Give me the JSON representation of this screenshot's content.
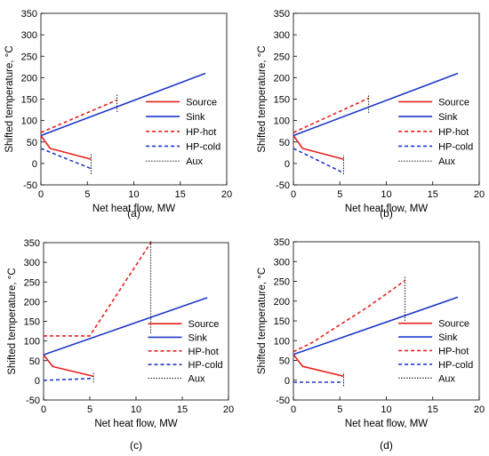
{
  "chart_data": [
    {
      "type": "line",
      "caption": "(a)",
      "xlabel": "Net heat flow, MW",
      "ylabel": "Shifted  temperature, °C",
      "xlim": [
        0,
        20
      ],
      "ylim": [
        -50,
        350
      ],
      "xticks": [
        0,
        5,
        10,
        15,
        20
      ],
      "yticks": [
        -50,
        0,
        50,
        100,
        150,
        200,
        250,
        300,
        350
      ],
      "grid": false,
      "legend_position": "right",
      "series": [
        {
          "name": "Source",
          "style": "solid",
          "color": "#e8201e",
          "x": [
            0,
            1,
            5.4
          ],
          "y": [
            65,
            35,
            10
          ]
        },
        {
          "name": "Sink",
          "style": "solid",
          "color": "#1f39c8",
          "x": [
            0,
            17.7
          ],
          "y": [
            65,
            210
          ]
        },
        {
          "name": "HP-hot",
          "style": "dashed",
          "color": "#e8201e",
          "x": [
            0,
            8.2
          ],
          "y": [
            72,
            148
          ]
        },
        {
          "name": "HP-cold",
          "style": "dashed",
          "color": "#1f39c8",
          "x": [
            0,
            5.4
          ],
          "y": [
            35,
            -12
          ]
        },
        {
          "name": "Aux",
          "style": "dotted",
          "color": "#000000",
          "lines": [
            {
              "x": 8.2,
              "y": [
                120,
                162
              ]
            },
            {
              "x": 5.4,
              "y": [
                -25,
                22
              ]
            }
          ]
        }
      ]
    },
    {
      "type": "line",
      "caption": "(b)",
      "xlabel": "Net heat flow, MW",
      "ylabel": "Shifted  temperature, °C",
      "xlim": [
        0,
        20
      ],
      "ylim": [
        -50,
        350
      ],
      "xticks": [
        0,
        5,
        10,
        15,
        20
      ],
      "yticks": [
        -50,
        0,
        50,
        100,
        150,
        200,
        250,
        300,
        350
      ],
      "grid": false,
      "legend_position": "right",
      "series": [
        {
          "name": "Source",
          "style": "solid",
          "color": "#e8201e",
          "x": [
            0,
            1,
            5.4
          ],
          "y": [
            65,
            35,
            10
          ]
        },
        {
          "name": "Sink",
          "style": "solid",
          "color": "#1f39c8",
          "x": [
            0,
            17.7
          ],
          "y": [
            65,
            210
          ]
        },
        {
          "name": "HP-hot",
          "style": "dashed",
          "color": "#e8201e",
          "x": [
            0,
            8.1
          ],
          "y": [
            72,
            152
          ]
        },
        {
          "name": "HP-cold",
          "style": "dashed",
          "color": "#1f39c8",
          "x": [
            0,
            5.4
          ],
          "y": [
            35,
            -22
          ]
        },
        {
          "name": "Aux",
          "style": "dotted",
          "color": "#000000",
          "lines": [
            {
              "x": 8.1,
              "y": [
                118,
                162
              ]
            },
            {
              "x": 5.4,
              "y": [
                -25,
                20
              ]
            }
          ]
        }
      ]
    },
    {
      "type": "line",
      "caption": "(c)",
      "xlabel": "Net heat flow, MW",
      "ylabel": "Shifted  temperature, °C",
      "xlim": [
        0,
        20
      ],
      "ylim": [
        -50,
        350
      ],
      "xticks": [
        0,
        5,
        10,
        15,
        20
      ],
      "yticks": [
        -50,
        0,
        50,
        100,
        150,
        200,
        250,
        300,
        350
      ],
      "grid": false,
      "legend_position": "right",
      "series": [
        {
          "name": "Source",
          "style": "solid",
          "color": "#e8201e",
          "x": [
            0,
            1,
            5.4
          ],
          "y": [
            65,
            35,
            10
          ]
        },
        {
          "name": "Sink",
          "style": "solid",
          "color": "#1f39c8",
          "x": [
            0,
            17.7
          ],
          "y": [
            65,
            210
          ]
        },
        {
          "name": "HP-hot",
          "style": "dashed",
          "color": "#e8201e",
          "x": [
            0,
            5.0,
            11.6
          ],
          "y": [
            113,
            113,
            350
          ]
        },
        {
          "name": "HP-cold",
          "style": "dashed",
          "color": "#1f39c8",
          "x": [
            0,
            5.4
          ],
          "y": [
            0,
            5
          ]
        },
        {
          "name": "Aux",
          "style": "dotted",
          "color": "#000000",
          "lines": [
            {
              "x": 11.6,
              "y": [
                120,
                355
              ]
            },
            {
              "x": 5.4,
              "y": [
                -5,
                20
              ]
            }
          ]
        }
      ]
    },
    {
      "type": "line",
      "caption": "(d)",
      "xlabel": "Net heat flow, MW",
      "ylabel": "Shifted  temperature, °C",
      "xlim": [
        0,
        20
      ],
      "ylim": [
        -50,
        350
      ],
      "xticks": [
        0,
        5,
        10,
        15,
        20
      ],
      "yticks": [
        -50,
        0,
        50,
        100,
        150,
        200,
        250,
        300,
        350
      ],
      "grid": false,
      "legend_position": "right",
      "series": [
        {
          "name": "Source",
          "style": "solid",
          "color": "#e8201e",
          "x": [
            0,
            1,
            5.4
          ],
          "y": [
            65,
            35,
            10
          ]
        },
        {
          "name": "Sink",
          "style": "solid",
          "color": "#1f39c8",
          "x": [
            0,
            17.7
          ],
          "y": [
            65,
            210
          ]
        },
        {
          "name": "HP-hot",
          "style": "dashed",
          "color": "#e8201e",
          "x": [
            0,
            2,
            4,
            6,
            8,
            10,
            12
          ],
          "y": [
            72,
            95,
            125,
            155,
            185,
            218,
            252
          ]
        },
        {
          "name": "HP-cold",
          "style": "dashed",
          "color": "#1f39c8",
          "x": [
            0,
            5.4
          ],
          "y": [
            -5,
            -5
          ]
        },
        {
          "name": "Aux",
          "style": "dotted",
          "color": "#000000",
          "lines": [
            {
              "x": 12,
              "y": [
                150,
                262
              ]
            },
            {
              "x": 5.4,
              "y": [
                -15,
                20
              ]
            }
          ]
        }
      ]
    }
  ]
}
